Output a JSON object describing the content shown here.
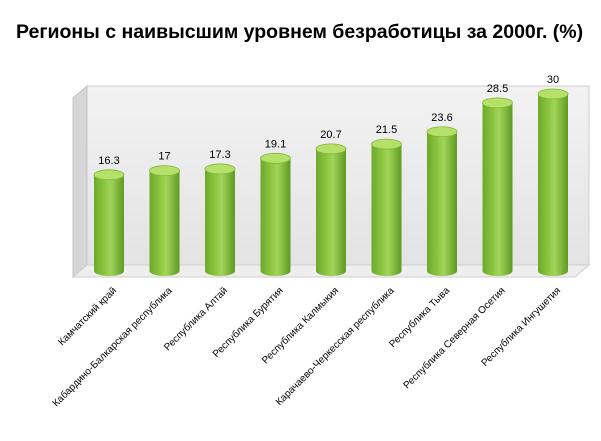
{
  "chart_data": {
    "type": "bar",
    "style": "3d-cylinder",
    "title": "Регионы с наивысшим уровнем безработицы за 2000г. (%)",
    "categories": [
      "Камчатский край",
      "Кабардино-Балкарская республика",
      "Республика Алтай",
      "Республика Бурятия",
      "Республика Калмыкия",
      "Карачаево-Черкесская республика",
      "Республика Тыва",
      "Республика Северная Осетия",
      "Республика Ингушетия"
    ],
    "values": [
      16.3,
      17,
      17.3,
      19.1,
      20.7,
      21.5,
      23.6,
      28.5,
      30
    ],
    "value_labels": [
      "16.3",
      "17",
      "17.3",
      "19.1",
      "20.7",
      "21.5",
      "23.6",
      "28.5",
      "30"
    ],
    "xlabel": "",
    "ylabel": "",
    "grid": false,
    "legend": "none",
    "colors": {
      "bar": "#8cc63f",
      "bar_top": "#b5e06a",
      "wall": "#e3e3e3",
      "floor": "#eeeeee"
    }
  }
}
